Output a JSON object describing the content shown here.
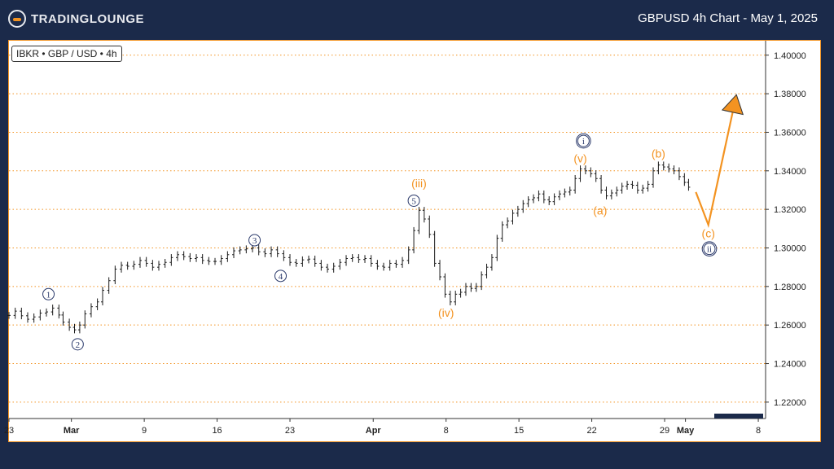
{
  "header": {
    "logo_text": "TRADINGLOUNGE",
    "title": "GBPUSD 4h Chart - May 1, 2025"
  },
  "ticker": "IBKR • GBP / USD • 4h",
  "colors": {
    "background": "#1b2a4a",
    "accent": "#f39321",
    "wave_navy": "#2b3a6b",
    "candle": "#1a1a1a",
    "grid": "#f39321",
    "current_price_box": "#1b2a4a"
  },
  "chart_data": {
    "type": "line",
    "title": "GBPUSD 4h Chart - May 1, 2025",
    "xlabel": "",
    "ylabel": "",
    "y_ticks": [
      "1.40000",
      "1.38000",
      "1.36000",
      "1.34000",
      "1.32000",
      "1.30000",
      "1.28000",
      "1.26000",
      "1.24000",
      "1.22000"
    ],
    "ylim": [
      1.2115,
      1.4075
    ],
    "x_ticks": [
      {
        "label": "23",
        "day": 0
      },
      {
        "label": "Mar",
        "day": 6
      },
      {
        "label": "9",
        "day": 13
      },
      {
        "label": "16",
        "day": 20
      },
      {
        "label": "23",
        "day": 27
      },
      {
        "label": "Apr",
        "day": 35
      },
      {
        "label": "8",
        "day": 42
      },
      {
        "label": "15",
        "day": 49
      },
      {
        "label": "22",
        "day": 56
      },
      {
        "label": "29",
        "day": 63
      },
      {
        "label": "May",
        "day": 65
      },
      {
        "label": "8",
        "day": 72
      }
    ],
    "xlim": [
      0,
      72.7
    ],
    "grid": "horizontal dotted",
    "price_series": [
      [
        0.0,
        1.265
      ],
      [
        0.6,
        1.2672
      ],
      [
        1.2,
        1.2648
      ],
      [
        1.8,
        1.263
      ],
      [
        2.4,
        1.2642
      ],
      [
        3.0,
        1.2662
      ],
      [
        3.6,
        1.2668
      ],
      [
        4.2,
        1.2688
      ],
      [
        4.8,
        1.2652
      ],
      [
        5.2,
        1.2615
      ],
      [
        5.8,
        1.2588
      ],
      [
        6.3,
        1.2575
      ],
      [
        6.8,
        1.26
      ],
      [
        7.3,
        1.2658
      ],
      [
        7.9,
        1.2695
      ],
      [
        8.5,
        1.272
      ],
      [
        9.0,
        1.278
      ],
      [
        9.6,
        1.283
      ],
      [
        10.2,
        1.289
      ],
      [
        10.8,
        1.291
      ],
      [
        11.4,
        1.2905
      ],
      [
        12.0,
        1.2915
      ],
      [
        12.6,
        1.2935
      ],
      [
        13.2,
        1.292
      ],
      [
        13.8,
        1.29
      ],
      [
        14.4,
        1.2915
      ],
      [
        15.0,
        1.2925
      ],
      [
        15.6,
        1.295
      ],
      [
        16.2,
        1.2965
      ],
      [
        16.8,
        1.2955
      ],
      [
        17.4,
        1.2945
      ],
      [
        18.0,
        1.295
      ],
      [
        18.6,
        1.2935
      ],
      [
        19.2,
        1.293
      ],
      [
        19.8,
        1.293
      ],
      [
        20.4,
        1.2945
      ],
      [
        21.0,
        1.2965
      ],
      [
        21.6,
        1.2985
      ],
      [
        22.2,
        1.299
      ],
      [
        22.8,
        1.2995
      ],
      [
        23.4,
        1.3
      ],
      [
        24.0,
        1.298
      ],
      [
        24.6,
        1.297
      ],
      [
        25.2,
        1.299
      ],
      [
        25.8,
        1.297
      ],
      [
        26.4,
        1.295
      ],
      [
        27.0,
        1.2925
      ],
      [
        27.6,
        1.292
      ],
      [
        28.2,
        1.2938
      ],
      [
        28.8,
        1.2942
      ],
      [
        29.4,
        1.292
      ],
      [
        30.0,
        1.29
      ],
      [
        30.6,
        1.289
      ],
      [
        31.2,
        1.2905
      ],
      [
        31.8,
        1.2925
      ],
      [
        32.4,
        1.2945
      ],
      [
        33.0,
        1.295
      ],
      [
        33.6,
        1.294
      ],
      [
        34.2,
        1.2945
      ],
      [
        34.8,
        1.292
      ],
      [
        35.4,
        1.2905
      ],
      [
        36.0,
        1.29
      ],
      [
        36.6,
        1.292
      ],
      [
        37.2,
        1.2915
      ],
      [
        37.8,
        1.2935
      ],
      [
        38.4,
        1.299
      ],
      [
        38.9,
        1.309
      ],
      [
        39.4,
        1.3195
      ],
      [
        39.9,
        1.315
      ],
      [
        40.4,
        1.307
      ],
      [
        40.9,
        1.292
      ],
      [
        41.4,
        1.285
      ],
      [
        41.9,
        1.276
      ],
      [
        42.4,
        1.272
      ],
      [
        42.9,
        1.276
      ],
      [
        43.4,
        1.277
      ],
      [
        43.9,
        1.28
      ],
      [
        44.4,
        1.279
      ],
      [
        44.9,
        1.28
      ],
      [
        45.4,
        1.286
      ],
      [
        45.9,
        1.29
      ],
      [
        46.4,
        1.295
      ],
      [
        46.9,
        1.305
      ],
      [
        47.4,
        1.312
      ],
      [
        47.9,
        1.314
      ],
      [
        48.4,
        1.318
      ],
      [
        48.9,
        1.32
      ],
      [
        49.4,
        1.323
      ],
      [
        49.9,
        1.325
      ],
      [
        50.4,
        1.326
      ],
      [
        50.9,
        1.328
      ],
      [
        51.4,
        1.325
      ],
      [
        51.9,
        1.324
      ],
      [
        52.4,
        1.3265
      ],
      [
        52.9,
        1.328
      ],
      [
        53.4,
        1.329
      ],
      [
        53.9,
        1.33
      ],
      [
        54.4,
        1.336
      ],
      [
        54.9,
        1.341
      ],
      [
        55.4,
        1.34
      ],
      [
        55.9,
        1.3385
      ],
      [
        56.4,
        1.336
      ],
      [
        56.9,
        1.33
      ],
      [
        57.4,
        1.327
      ],
      [
        57.9,
        1.3285
      ],
      [
        58.4,
        1.33
      ],
      [
        58.9,
        1.332
      ],
      [
        59.4,
        1.333
      ],
      [
        59.9,
        1.3325
      ],
      [
        60.4,
        1.33
      ],
      [
        60.9,
        1.331
      ],
      [
        61.4,
        1.333
      ],
      [
        61.9,
        1.34
      ],
      [
        62.4,
        1.343
      ],
      [
        62.9,
        1.342
      ],
      [
        63.4,
        1.341
      ],
      [
        63.9,
        1.34
      ],
      [
        64.4,
        1.337
      ],
      [
        64.9,
        1.334
      ],
      [
        65.3,
        1.3315
      ]
    ],
    "projection": [
      [
        66.0,
        1.329
      ],
      [
        67.2,
        1.312
      ],
      [
        69.8,
        1.377
      ]
    ],
    "wave_labels": [
      {
        "text": "1",
        "day": 3.8,
        "price": 1.276,
        "style": "circled",
        "color": "navy"
      },
      {
        "text": "2",
        "day": 6.6,
        "price": 1.25,
        "style": "circled",
        "color": "navy"
      },
      {
        "text": "3",
        "day": 23.6,
        "price": 1.304,
        "style": "circled",
        "color": "navy"
      },
      {
        "text": "4",
        "day": 26.1,
        "price": 1.2855,
        "style": "circled",
        "color": "navy"
      },
      {
        "text": "5",
        "day": 38.9,
        "price": 1.3245,
        "style": "circled",
        "color": "navy"
      },
      {
        "text": "(iii)",
        "day": 39.4,
        "price": 1.3335,
        "style": "text",
        "color": "orange"
      },
      {
        "text": "(iv)",
        "day": 42.0,
        "price": 1.2665,
        "style": "text",
        "color": "orange"
      },
      {
        "text": "(v)",
        "day": 54.9,
        "price": 1.3465,
        "style": "text",
        "color": "orange"
      },
      {
        "text": "i",
        "day": 55.2,
        "price": 1.3555,
        "style": "circled-double",
        "color": "navy"
      },
      {
        "text": "(a)",
        "day": 56.8,
        "price": 1.3195,
        "style": "text",
        "color": "orange"
      },
      {
        "text": "(b)",
        "day": 62.4,
        "price": 1.349,
        "style": "text",
        "color": "orange"
      },
      {
        "text": "(c)",
        "day": 67.2,
        "price": 1.3075,
        "style": "text",
        "color": "orange"
      },
      {
        "text": "ii",
        "day": 67.3,
        "price": 1.2995,
        "style": "circled-double",
        "color": "navy"
      }
    ],
    "current_price": 1.3315
  }
}
